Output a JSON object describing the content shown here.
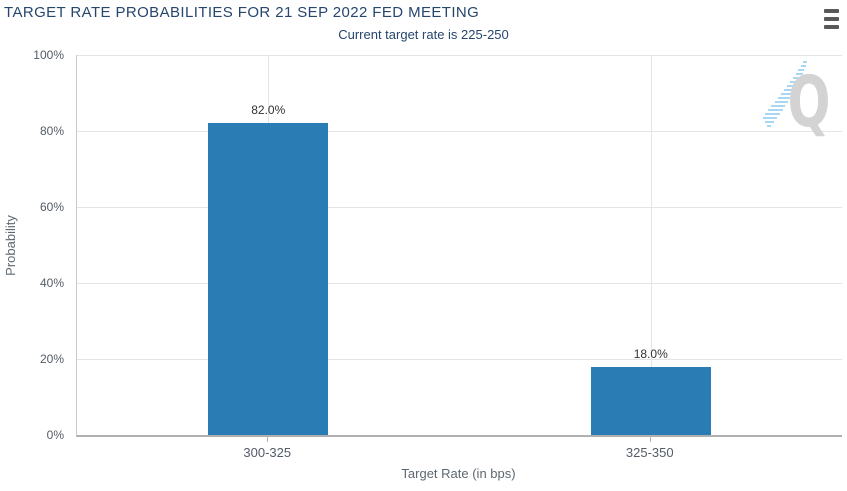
{
  "header": {
    "title": "TARGET RATE PROBABILITIES FOR 21 SEP 2022 FED MEETING",
    "subtitle": "Current target rate is 225-250"
  },
  "menu": {
    "icon": "hamburger-icon"
  },
  "watermark": {
    "letter": "Q",
    "icon": "quikstrike-logo"
  },
  "colors": {
    "bar": "#2a7db4",
    "title": "#26466e",
    "axis_label": "#545c66",
    "axis_title": "#5d6771",
    "data_label": "#333333",
    "gridline": "#e4e4e4",
    "axis_line": "#b0b0b0",
    "menu_icon": "#595959",
    "watermark_q": "#d3d3d3",
    "watermark_dash": "#a9d7f2"
  },
  "chart_data": {
    "type": "bar",
    "title": "TARGET RATE PROBABILITIES FOR 21 SEP 2022 FED MEETING",
    "subtitle": "Current target rate is 225-250",
    "categories": [
      "300-325",
      "325-350"
    ],
    "values": [
      82.0,
      18.0
    ],
    "data_labels": [
      "82.0%",
      "18.0%"
    ],
    "xlabel": "Target Rate (in bps)",
    "ylabel": "Probability",
    "ylim": [
      0,
      100
    ],
    "yticks": [
      {
        "pct": 0,
        "label": "0%"
      },
      {
        "pct": 20,
        "label": "20%"
      },
      {
        "pct": 40,
        "label": "40%"
      },
      {
        "pct": 60,
        "label": "60%"
      },
      {
        "pct": 80,
        "label": "80%"
      },
      {
        "pct": 100,
        "label": "100%"
      }
    ],
    "grid": "horizontal lines every 20%, one vertical line at each category center",
    "legend": "none"
  }
}
